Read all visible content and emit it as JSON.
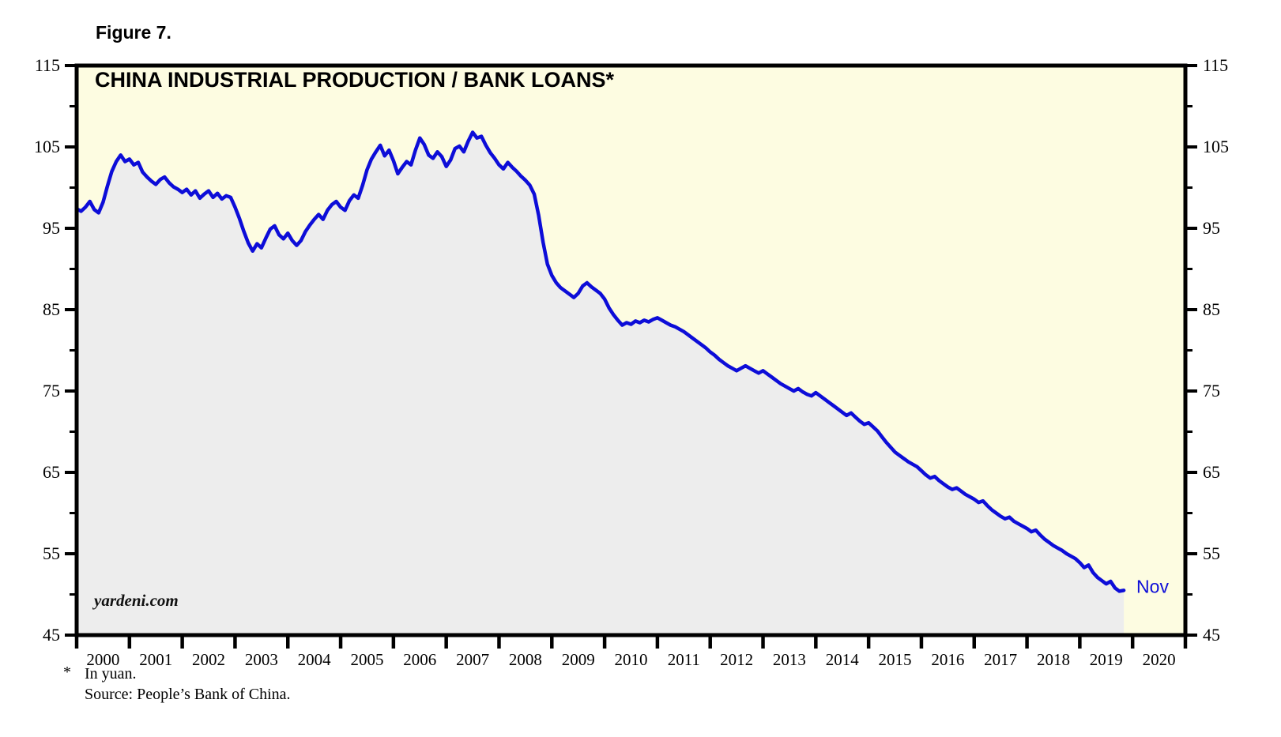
{
  "figure_label": "Figure 7.",
  "chart_data": {
    "type": "area",
    "title": "CHINA INDUSTRIAL PRODUCTION / BANK LOANS*",
    "watermark": "yardeni.com",
    "grid": false,
    "legend_position": "none",
    "x_axis": {
      "start_year": 2000,
      "points_per_year": 12,
      "year_labels": [
        "2000",
        "2001",
        "2002",
        "2003",
        "2004",
        "2005",
        "2006",
        "2007",
        "2008",
        "2009",
        "2010",
        "2011",
        "2012",
        "2013",
        "2014",
        "2015",
        "2016",
        "2017",
        "2018",
        "2019",
        "2020"
      ]
    },
    "y_axis": {
      "min": 45,
      "max": 115,
      "major_step": 10,
      "minor_step": 5,
      "major_tick_labels": [
        "45",
        "55",
        "65",
        "75",
        "85",
        "95",
        "105",
        "115"
      ],
      "label_sides": "left and right"
    },
    "series": [
      {
        "name": "China industrial production / bank loans (in yuan)",
        "first_point": "Jan 2000",
        "last_point": "Nov 2019",
        "end_label": "Nov",
        "monthly_values": [
          97.4,
          97.1,
          97.6,
          98.3,
          97.3,
          96.9,
          98.2,
          100.2,
          102.0,
          103.2,
          104.0,
          103.2,
          103.5,
          102.8,
          103.1,
          101.9,
          101.3,
          100.8,
          100.4,
          101.0,
          101.3,
          100.6,
          100.1,
          99.8,
          99.4,
          99.8,
          99.1,
          99.6,
          98.7,
          99.2,
          99.6,
          98.8,
          99.3,
          98.6,
          99.0,
          98.8,
          97.6,
          96.2,
          94.6,
          93.2,
          92.2,
          93.1,
          92.6,
          93.8,
          94.9,
          95.3,
          94.2,
          93.7,
          94.4,
          93.5,
          92.9,
          93.5,
          94.6,
          95.4,
          96.1,
          96.7,
          96.1,
          97.2,
          97.9,
          98.3,
          97.6,
          97.2,
          98.4,
          99.1,
          98.7,
          100.3,
          102.2,
          103.5,
          104.4,
          105.2,
          103.9,
          104.6,
          103.3,
          101.7,
          102.5,
          103.2,
          102.8,
          104.6,
          106.1,
          105.3,
          104.0,
          103.6,
          104.4,
          103.8,
          102.6,
          103.4,
          104.8,
          105.1,
          104.4,
          105.7,
          106.8,
          106.1,
          106.3,
          105.2,
          104.3,
          103.6,
          102.8,
          102.3,
          103.1,
          102.5,
          102.0,
          101.4,
          100.9,
          100.3,
          99.2,
          96.6,
          93.3,
          90.6,
          89.2,
          88.3,
          87.7,
          87.3,
          86.9,
          86.5,
          87.0,
          87.9,
          88.3,
          87.8,
          87.4,
          87.0,
          86.3,
          85.2,
          84.4,
          83.7,
          83.1,
          83.4,
          83.2,
          83.6,
          83.4,
          83.7,
          83.5,
          83.8,
          84.0,
          83.7,
          83.4,
          83.1,
          82.9,
          82.6,
          82.3,
          81.9,
          81.5,
          81.1,
          80.7,
          80.3,
          79.8,
          79.4,
          78.9,
          78.5,
          78.1,
          77.8,
          77.5,
          77.8,
          78.1,
          77.8,
          77.5,
          77.2,
          77.5,
          77.1,
          76.7,
          76.3,
          75.9,
          75.6,
          75.3,
          75.0,
          75.3,
          74.9,
          74.6,
          74.4,
          74.8,
          74.4,
          74.0,
          73.6,
          73.2,
          72.8,
          72.4,
          72.0,
          72.3,
          71.8,
          71.3,
          70.9,
          71.1,
          70.6,
          70.1,
          69.4,
          68.7,
          68.1,
          67.5,
          67.1,
          66.7,
          66.3,
          66.0,
          65.7,
          65.2,
          64.7,
          64.3,
          64.5,
          64.0,
          63.6,
          63.2,
          62.9,
          63.1,
          62.7,
          62.3,
          62.0,
          61.7,
          61.3,
          61.5,
          60.9,
          60.4,
          60.0,
          59.6,
          59.3,
          59.5,
          59.0,
          58.7,
          58.4,
          58.1,
          57.7,
          57.9,
          57.3,
          56.8,
          56.4,
          56.0,
          55.7,
          55.4,
          55.0,
          54.7,
          54.4,
          53.9,
          53.3,
          53.6,
          52.7,
          52.1,
          51.7,
          51.3,
          51.6,
          50.8,
          50.4,
          50.5
        ]
      }
    ],
    "colors": {
      "line": "#0d0dd8",
      "area_fill": "#ededed",
      "plot_background": "#fdfce1",
      "frame": "#000000",
      "end_label": "#0d0dd8"
    }
  },
  "footnote": {
    "marker": "*",
    "line1": "In yuan.",
    "line2": "Source: People’s Bank of China."
  }
}
